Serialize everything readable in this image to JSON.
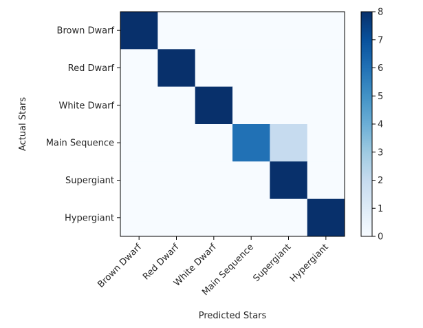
{
  "chart_data": {
    "type": "heatmap",
    "title": "",
    "xlabel": "Predicted Stars",
    "ylabel": "Actual Stars",
    "x_categories": [
      "Brown Dwarf",
      "Red Dwarf",
      "White Dwarf",
      "Main Sequence",
      "Supergiant",
      "Hypergiant"
    ],
    "y_categories": [
      "Brown Dwarf",
      "Red Dwarf",
      "White Dwarf",
      "Main Sequence",
      "Supergiant",
      "Hypergiant"
    ],
    "values": [
      [
        8,
        0,
        0,
        0,
        0,
        0
      ],
      [
        0,
        8,
        0,
        0,
        0,
        0
      ],
      [
        0,
        0,
        8,
        0,
        0,
        0
      ],
      [
        0,
        0,
        0,
        6,
        2,
        0
      ],
      [
        0,
        0,
        0,
        0,
        8,
        0
      ],
      [
        0,
        0,
        0,
        0,
        0,
        8
      ]
    ],
    "colormap": "Blues",
    "colorbar": {
      "min": 0,
      "max": 8,
      "ticks": [
        "0",
        "1",
        "2",
        "3",
        "4",
        "5",
        "6",
        "7",
        "8"
      ]
    },
    "grid": false
  }
}
